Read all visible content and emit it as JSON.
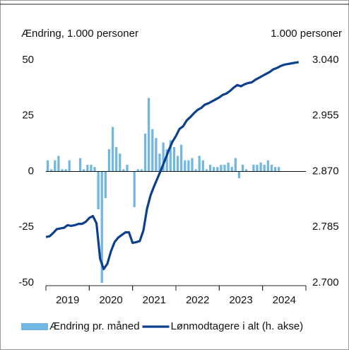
{
  "chart_data": {
    "type": "bar_line",
    "y_label": "Ændring, 1.000 personer",
    "y2_label": "1.000 personer",
    "xlim": [
      2019,
      2025
    ],
    "xticks": [
      {
        "value": 2019.5,
        "label": "2019"
      },
      {
        "value": 2020.5,
        "label": "2020"
      },
      {
        "value": 2021.5,
        "label": "2021"
      },
      {
        "value": 2022.5,
        "label": "2022"
      },
      {
        "value": 2023.5,
        "label": "2023"
      },
      {
        "value": 2024.5,
        "label": "2024"
      }
    ],
    "ylim": [
      -50,
      50
    ],
    "yticks": [
      -50,
      -25,
      0,
      25,
      50
    ],
    "y2lim": [
      2700,
      3040
    ],
    "y2ticks": [
      {
        "value": 2700,
        "label": "2.700"
      },
      {
        "value": 2785,
        "label": "2.785"
      },
      {
        "value": 2870,
        "label": "2.870"
      },
      {
        "value": 2955,
        "label": "2.955"
      },
      {
        "value": 3040,
        "label": "3.040"
      }
    ],
    "legend": "bottom",
    "series": [
      {
        "name": "Ændring pr. måned",
        "type": "bar",
        "color": "#72b6e2",
        "x": [
          2019,
          2019.083,
          2019.167,
          2019.25,
          2019.333,
          2019.417,
          2019.5,
          2019.583,
          2019.667,
          2019.75,
          2019.833,
          2019.917,
          2020,
          2020.083,
          2020.167,
          2020.25,
          2020.333,
          2020.417,
          2020.5,
          2020.583,
          2020.667,
          2020.75,
          2020.833,
          2020.917,
          2021,
          2021.083,
          2021.167,
          2021.25,
          2021.333,
          2021.417,
          2021.5,
          2021.583,
          2021.667,
          2021.75,
          2021.833,
          2021.917,
          2022,
          2022.083,
          2022.167,
          2022.25,
          2022.333,
          2022.417,
          2022.5,
          2022.583,
          2022.667,
          2022.75,
          2022.833,
          2022.917,
          2023,
          2023.083,
          2023.167,
          2023.25,
          2023.333,
          2023.417,
          2023.5,
          2023.583,
          2023.667,
          2023.75,
          2023.833,
          2023.917,
          2024,
          2024.083,
          2024.167,
          2024.25,
          2024.333
        ],
        "values": [
          5,
          1,
          5,
          7,
          1,
          1,
          5,
          0,
          0,
          6,
          1,
          3,
          3,
          2,
          -17,
          -50,
          -12,
          10,
          20,
          11,
          8,
          1,
          3,
          0,
          -16,
          1,
          1,
          17,
          33,
          19,
          15,
          8,
          13,
          10,
          14,
          11,
          7,
          12,
          5,
          5,
          6,
          1,
          7,
          5,
          1,
          3,
          2,
          2,
          3,
          3,
          4,
          2,
          6,
          -3,
          3,
          1,
          0,
          3,
          3,
          4,
          3,
          5,
          3,
          2,
          2
        ]
      },
      {
        "name": "Lønmodtagere i alt (h. akse)",
        "type": "line",
        "axis": "y2",
        "color": "#0d3f8f",
        "x": [
          2019,
          2019.083,
          2019.167,
          2019.25,
          2019.333,
          2019.417,
          2019.5,
          2019.583,
          2019.667,
          2019.75,
          2019.833,
          2019.917,
          2020,
          2020.083,
          2020.167,
          2020.25,
          2020.333,
          2020.417,
          2020.5,
          2020.583,
          2020.667,
          2020.75,
          2020.833,
          2020.917,
          2021,
          2021.083,
          2021.167,
          2021.25,
          2021.333,
          2021.417,
          2021.5,
          2021.583,
          2021.667,
          2021.75,
          2021.833,
          2021.917,
          2022,
          2022.083,
          2022.167,
          2022.25,
          2022.333,
          2022.417,
          2022.5,
          2022.583,
          2022.667,
          2022.75,
          2022.833,
          2022.917,
          2023,
          2023.083,
          2023.167,
          2023.25,
          2023.333,
          2023.417,
          2023.5,
          2023.583,
          2023.667,
          2023.75,
          2023.833,
          2023.917,
          2024,
          2024.083,
          2024.167,
          2024.25,
          2024.333,
          2024.417,
          2024.5,
          2024.583,
          2024.667,
          2024.75,
          2024.833
        ],
        "values": [
          2770,
          2771,
          2776,
          2782,
          2783,
          2784,
          2788,
          2787,
          2788,
          2790,
          2790,
          2793,
          2799,
          2802,
          2791,
          2737,
          2721,
          2729,
          2748,
          2762,
          2769,
          2773,
          2777,
          2777,
          2761,
          2762,
          2764,
          2780,
          2813,
          2834,
          2848,
          2861,
          2874,
          2888,
          2902,
          2915,
          2924,
          2935,
          2939,
          2948,
          2953,
          2959,
          2964,
          2967,
          2972,
          2974,
          2977,
          2980,
          2983,
          2987,
          2989,
          2993,
          2998,
          3002,
          3000,
          3003,
          3005,
          3006,
          3010,
          3013,
          3016,
          3019,
          3022,
          3026,
          3028,
          3031,
          3033,
          3034,
          3035,
          3036,
          3037
        ]
      }
    ]
  }
}
